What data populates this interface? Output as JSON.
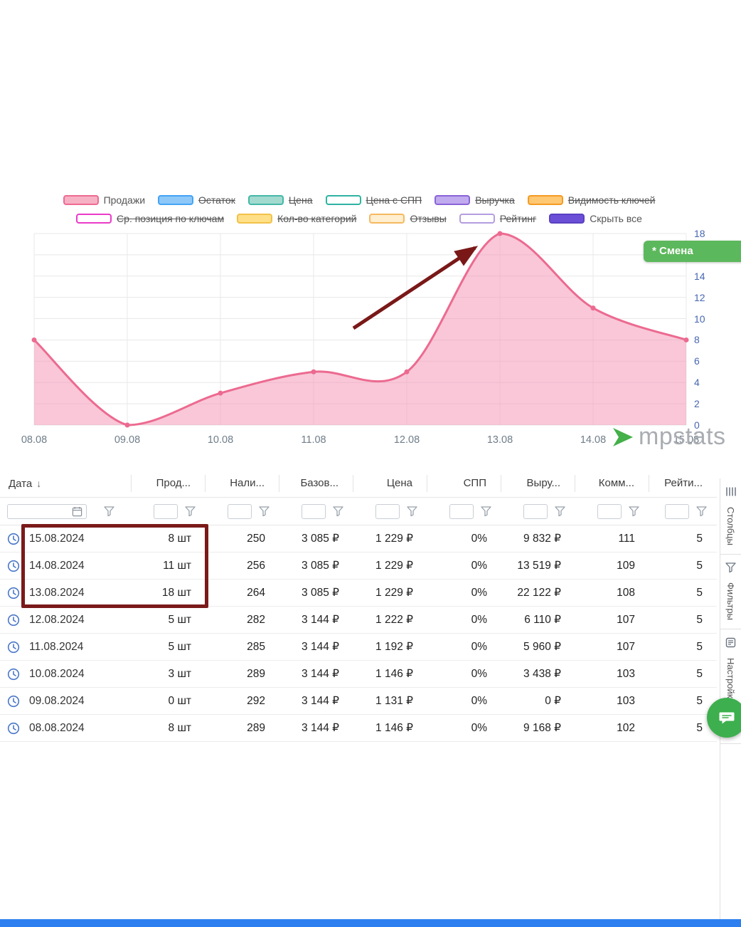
{
  "legend": {
    "rows": [
      [
        {
          "label": "Продажи",
          "fill": "#f7b1c4",
          "border": "#ee6a92",
          "strike": false
        },
        {
          "label": "Остаток",
          "fill": "#8ec8f8",
          "border": "#44a4f5",
          "strike": true
        },
        {
          "label": "Цена",
          "fill": "#a3dacf",
          "border": "#45b8a8",
          "strike": true
        },
        {
          "label": "Цена с СПП",
          "fill": "#ffffff",
          "border": "#2fb3a3",
          "strike": true
        },
        {
          "label": "Выручка",
          "fill": "#c0abee",
          "border": "#8a63d8",
          "strike": true
        },
        {
          "label": "Видимость ключей",
          "fill": "#ffc873",
          "border": "#f59b23",
          "strike": true
        }
      ],
      [
        {
          "label": "Ср. позиция по ключам",
          "fill": "#ffffff",
          "border": "#ea3bc8",
          "strike": true
        },
        {
          "label": "Кол-во категорий",
          "fill": "#ffe088",
          "border": "#f2c14a",
          "strike": true
        },
        {
          "label": "Отзывы",
          "fill": "#ffeecf",
          "border": "#f5b961",
          "strike": true
        },
        {
          "label": "Рейтинг",
          "fill": "#ffffff",
          "border": "#b49de0",
          "strike": true
        },
        {
          "label": "Скрыть все",
          "fill": "#6b50d7",
          "border": "#5a41c2",
          "strike": false
        }
      ]
    ]
  },
  "chart_data": {
    "type": "area",
    "title": "",
    "x": [
      "08.08",
      "09.08",
      "10.08",
      "11.08",
      "12.08",
      "13.08",
      "14.08",
      "15.08"
    ],
    "series": [
      {
        "name": "Продажи",
        "values": [
          8,
          0,
          3,
          5,
          5,
          18,
          11,
          8
        ],
        "line_color": "#ec6a90",
        "fill_color": "rgba(244,143,177,0.5)"
      }
    ],
    "ylim": [
      0,
      18
    ],
    "yticks": [
      0,
      2,
      4,
      6,
      8,
      10,
      12,
      14,
      16,
      18
    ],
    "y_axis_side": "right",
    "grid": true
  },
  "chart_tooltip": {
    "text": "* Смена",
    "bg": "#5cb85c"
  },
  "watermark_text": "mpstats",
  "annotations": {
    "arrow_color": "#7a1818",
    "rect_color": "#7b1a1a"
  },
  "table": {
    "sort_indicator": "↓",
    "columns": [
      {
        "label": "Дата",
        "align": "left"
      },
      {
        "label": "Прод...",
        "align": "right"
      },
      {
        "label": "Нали...",
        "align": "right"
      },
      {
        "label": "Базов...",
        "align": "right"
      },
      {
        "label": "Цена",
        "align": "right"
      },
      {
        "label": "СПП",
        "align": "right"
      },
      {
        "label": "Выру...",
        "align": "right"
      },
      {
        "label": "Комм...",
        "align": "right"
      },
      {
        "label": "Рейти...",
        "align": "right"
      }
    ],
    "rows": [
      [
        "15.08.2024",
        "8 шт",
        "250",
        "3 085 ₽",
        "1 229 ₽",
        "0%",
        "9 832 ₽",
        "111",
        "5"
      ],
      [
        "14.08.2024",
        "11 шт",
        "256",
        "3 085 ₽",
        "1 229 ₽",
        "0%",
        "13 519 ₽",
        "109",
        "5"
      ],
      [
        "13.08.2024",
        "18 шт",
        "264",
        "3 085 ₽",
        "1 229 ₽",
        "0%",
        "22 122 ₽",
        "108",
        "5"
      ],
      [
        "12.08.2024",
        "5 шт",
        "282",
        "3 144 ₽",
        "1 222 ₽",
        "0%",
        "6 110 ₽",
        "107",
        "5"
      ],
      [
        "11.08.2024",
        "5 шт",
        "285",
        "3 144 ₽",
        "1 192 ₽",
        "0%",
        "5 960 ₽",
        "107",
        "5"
      ],
      [
        "10.08.2024",
        "3 шт",
        "289",
        "3 144 ₽",
        "1 146 ₽",
        "0%",
        "3 438 ₽",
        "103",
        "5"
      ],
      [
        "09.08.2024",
        "0 шт",
        "292",
        "3 144 ₽",
        "1 131 ₽",
        "0%",
        "0 ₽",
        "103",
        "5"
      ],
      [
        "08.08.2024",
        "8 шт",
        "289",
        "3 144 ₽",
        "1 146 ₽",
        "0%",
        "9 168 ₽",
        "102",
        "5"
      ]
    ]
  },
  "sidebar": {
    "tabs": [
      {
        "label": "Столбцы",
        "icon": "columns-icon"
      },
      {
        "label": "Фильтры",
        "icon": "filter-icon"
      },
      {
        "label": "Настройки",
        "icon": "settings-icon"
      },
      {
        "label": "",
        "icon": "doc-icon"
      }
    ]
  }
}
